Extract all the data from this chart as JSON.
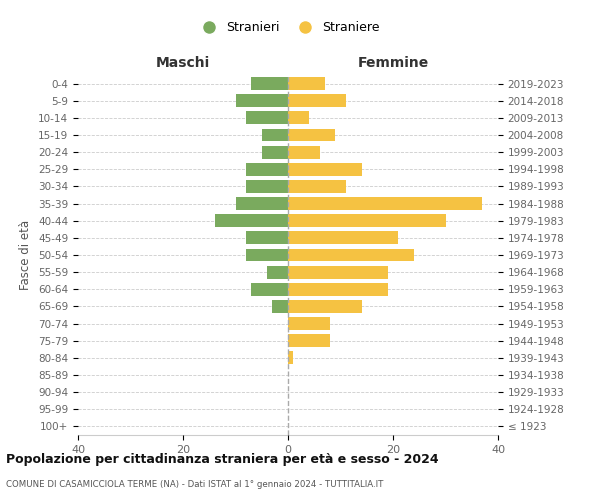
{
  "age_groups": [
    "100+",
    "95-99",
    "90-94",
    "85-89",
    "80-84",
    "75-79",
    "70-74",
    "65-69",
    "60-64",
    "55-59",
    "50-54",
    "45-49",
    "40-44",
    "35-39",
    "30-34",
    "25-29",
    "20-24",
    "15-19",
    "10-14",
    "5-9",
    "0-4"
  ],
  "birth_years": [
    "≤ 1923",
    "1924-1928",
    "1929-1933",
    "1934-1938",
    "1939-1943",
    "1944-1948",
    "1949-1953",
    "1954-1958",
    "1959-1963",
    "1964-1968",
    "1969-1973",
    "1974-1978",
    "1979-1983",
    "1984-1988",
    "1989-1993",
    "1994-1998",
    "1999-2003",
    "2004-2008",
    "2009-2013",
    "2014-2018",
    "2019-2023"
  ],
  "males": [
    0,
    0,
    0,
    0,
    0,
    0,
    0,
    3,
    7,
    4,
    8,
    8,
    14,
    10,
    8,
    8,
    5,
    5,
    8,
    10,
    7
  ],
  "females": [
    0,
    0,
    0,
    0,
    1,
    8,
    8,
    14,
    19,
    19,
    24,
    21,
    30,
    37,
    11,
    14,
    6,
    9,
    4,
    11,
    7
  ],
  "color_males": "#7aaa5e",
  "color_females": "#f5c242",
  "bg_color": "#ffffff",
  "grid_color": "#cccccc",
  "title": "Popolazione per cittadinanza straniera per età e sesso - 2024",
  "subtitle": "COMUNE DI CASAMICCIOLA TERME (NA) - Dati ISTAT al 1° gennaio 2024 - TUTTITALIA.IT",
  "xlabel_left": "Maschi",
  "xlabel_right": "Femmine",
  "ylabel_left": "Fasce di età",
  "legend_males": "Stranieri",
  "legend_females": "Straniere",
  "xlim": 40,
  "center_line_color": "#aaaaaa"
}
